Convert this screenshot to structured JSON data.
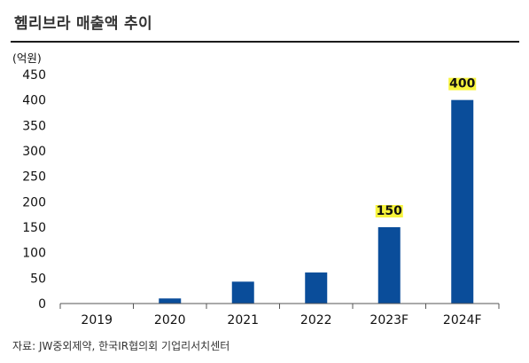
{
  "title": "헴리브라 매출액 추이",
  "unit_label": "(억원)",
  "source": "자료: JW중외제약, 한국IR협의회 기업리서치센터",
  "colors": {
    "bar": "#0a4d9a",
    "highlight": "#f7f43c",
    "axis": "#555555"
  },
  "chart_data": {
    "type": "bar",
    "title": "헴리브라 매출액 추이",
    "ylabel": "(억원)",
    "xlabel": "",
    "categories": [
      "2019",
      "2020",
      "2021",
      "2022",
      "2023F",
      "2024F"
    ],
    "values": [
      0,
      10,
      43,
      61,
      150,
      400
    ],
    "ylim": [
      0,
      450
    ],
    "yticks": [
      0,
      50,
      100,
      150,
      200,
      250,
      300,
      350,
      400,
      450
    ],
    "data_labels": [
      {
        "category": "2023F",
        "text": "150"
      },
      {
        "category": "2024F",
        "text": "400"
      }
    ],
    "grid": false,
    "legend": "none"
  }
}
